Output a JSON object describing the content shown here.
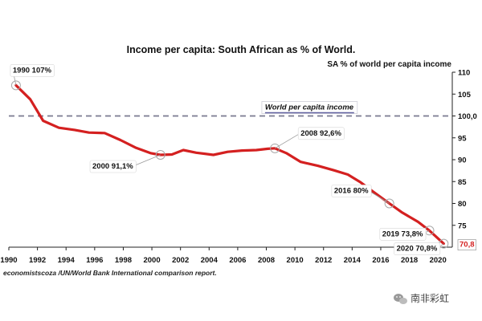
{
  "chart_data": {
    "type": "line",
    "title": "Income per capita: South African as % of World.",
    "ylabel": "SA % of world per capita income",
    "xlim": [
      1990,
      2021
    ],
    "ylim": [
      70,
      110
    ],
    "x_ticks": [
      "1990",
      "1992",
      "1994",
      "1996",
      "1998",
      "2000",
      "2002",
      "2004",
      "2006",
      "2008",
      "2010",
      "2012",
      "2014",
      "2016",
      "2018",
      "2020"
    ],
    "y_ticks": [
      "75",
      "80",
      "85",
      "90",
      "95",
      "100,0",
      "105",
      "110"
    ],
    "y_tick_values": [
      75,
      80,
      85,
      90,
      95,
      100,
      105,
      110
    ],
    "grid": false,
    "series": [
      {
        "x": [
          1990.5,
          1991.5,
          1992.4,
          1993.5,
          1994.6,
          1995.6,
          1996.7,
          1997.8,
          1998.9,
          1999.9,
          2000.6,
          2001.4,
          2002.2,
          2003.1,
          2004.3,
          2005.3,
          2006.3,
          2007.3,
          2008.1,
          2008.6,
          2009.4,
          2010.4,
          2011.6,
          2012.7,
          2013.7,
          2014.6,
          2015.5,
          2016.6,
          2017.5,
          2018.6,
          2019.4,
          2020.4
        ],
        "values": [
          107,
          103.8,
          98.9,
          97.3,
          96.8,
          96.2,
          96.1,
          94.5,
          92.7,
          91.5,
          91.1,
          91.2,
          92.2,
          91.6,
          91.1,
          91.8,
          92.1,
          92.2,
          92.5,
          92.6,
          91.5,
          89.5,
          88.6,
          87.6,
          86.6,
          84.8,
          82.6,
          80.0,
          77.9,
          75.8,
          73.8,
          70.8
        ],
        "color": "#d42020"
      }
    ],
    "reference_line": {
      "value": 100,
      "label": "World per capita income",
      "color": "#7a7a90"
    },
    "annotations": [
      {
        "text": "1990 107%",
        "x": 1990.5,
        "y": 107
      },
      {
        "text": "2000 91,1%",
        "x": 2000.6,
        "y": 91.1
      },
      {
        "text": "2008 92,6%",
        "x": 2008.6,
        "y": 92.6
      },
      {
        "text": "2016 80%",
        "x": 2016.6,
        "y": 80.0
      },
      {
        "text": "2019 73,8%",
        "x": 2019.4,
        "y": 73.8
      },
      {
        "text": "2020 70,8%",
        "x": 2020.4,
        "y": 70.8
      }
    ],
    "end_value_label": {
      "text": "70,8",
      "color": "#d42020"
    },
    "source": "economistscoza /UN/World Bank International comparison report."
  },
  "watermark": "南非彩虹"
}
